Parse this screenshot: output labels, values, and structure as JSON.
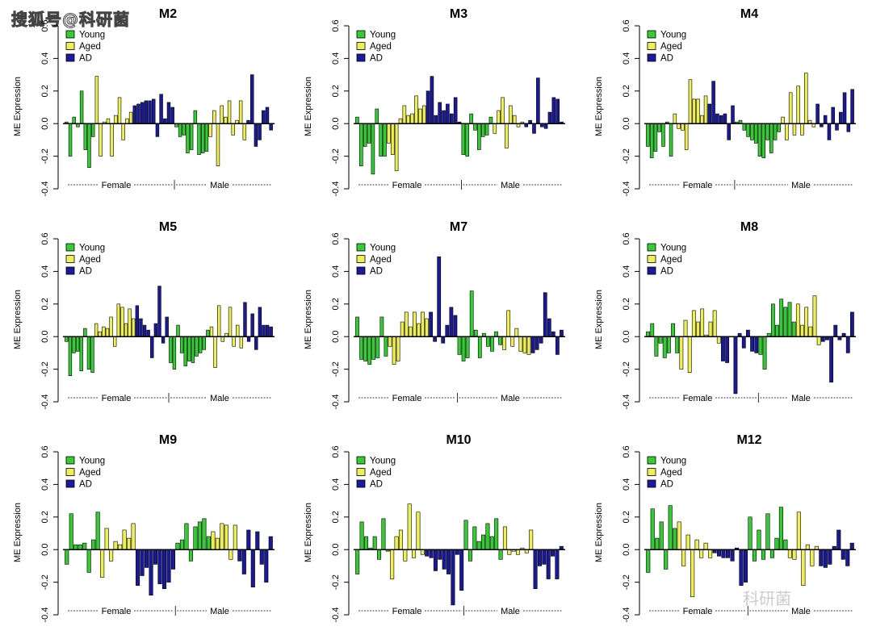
{
  "watermarks": {
    "top": "搜狐号@科研菌",
    "bottom": "科研菌"
  },
  "colors": {
    "Young": "#33cc33",
    "Aged": "#eeee55",
    "AD": "#1a1a99"
  },
  "chart_data": [
    {
      "type": "bar",
      "title": "M2",
      "ylabel": "ME Expression",
      "ylim": [
        -0.4,
        0.6
      ],
      "yticks": [
        "-0.4",
        "-0.2",
        "0.0",
        "0.2",
        "0.4",
        "0.6"
      ],
      "legend": [
        "Young",
        "Aged",
        "AD"
      ],
      "group_labels": [
        "Female",
        "Male"
      ],
      "female": {
        "Young": [
          0.01,
          -0.2,
          0.04,
          -0.02,
          0.2,
          -0.16,
          -0.27,
          -0.08
        ],
        "Aged": [
          0.29,
          -0.2,
          0.01,
          0.03,
          -0.2,
          0.05,
          0.16,
          -0.1,
          0.03,
          0.07
        ],
        "AD": [
          0.11,
          0.12,
          0.13,
          0.14,
          0.14,
          0.15,
          -0.08,
          0.18,
          0.03,
          0.13,
          0.1
        ]
      },
      "male": {
        "Young": [
          -0.02,
          -0.08,
          -0.07,
          -0.18,
          -0.16,
          0.08,
          -0.19,
          -0.18,
          -0.17
        ],
        "Aged": [
          -0.08,
          0.08,
          -0.26,
          0.11,
          0.04,
          0.14,
          -0.07,
          0.02,
          0.14,
          -0.1
        ],
        "AD": [
          0.02,
          0.3,
          -0.14,
          -0.1,
          0.08,
          0.1,
          -0.04
        ]
      }
    },
    {
      "type": "bar",
      "title": "M3",
      "ylabel": "ME Expression",
      "ylim": [
        -0.4,
        0.6
      ],
      "yticks": [
        "-0.4",
        "-0.2",
        "0.0",
        "0.2",
        "0.4",
        "0.6"
      ],
      "legend": [
        "Young",
        "Aged",
        "AD"
      ],
      "group_labels": [
        "Female",
        "Male"
      ],
      "female": {
        "Young": [
          0.04,
          -0.26,
          -0.14,
          -0.12,
          -0.31,
          0.09,
          -0.2,
          -0.2
        ],
        "Aged": [
          -0.12,
          -0.19,
          -0.29,
          0.03,
          0.11,
          0.05,
          0.06,
          0.17,
          0.09,
          0.11
        ],
        "AD": [
          0.2,
          0.29,
          0.05,
          0.13,
          0.08,
          0.12,
          0.06,
          0.16,
          0.01
        ]
      },
      "male": {
        "Young": [
          -0.19,
          -0.2,
          0.06,
          -0.04,
          -0.16,
          -0.08,
          -0.07,
          0.04
        ],
        "Aged": [
          -0.06,
          0.08,
          0.16,
          -0.15,
          0.11,
          0.05,
          -0.02,
          0.01
        ],
        "AD": [
          -0.02,
          0.02,
          -0.06,
          0.28,
          -0.02,
          -0.03,
          0.07,
          0.16,
          0.15,
          0.01
        ]
      }
    },
    {
      "type": "bar",
      "title": "M4",
      "ylabel": "ME Expression",
      "ylim": [
        -0.4,
        0.6
      ],
      "yticks": [
        "-0.4",
        "-0.2",
        "0.0",
        "0.2",
        "0.4",
        "0.6"
      ],
      "legend": [
        "Young",
        "Aged",
        "AD"
      ],
      "group_labels": [
        "Female",
        "Male"
      ],
      "female": {
        "Young": [
          -0.14,
          -0.21,
          -0.17,
          -0.05,
          -0.14,
          0.01,
          -0.2
        ],
        "Aged": [
          0.06,
          -0.03,
          -0.04,
          -0.16,
          0.27,
          0.15,
          0.15,
          0.05,
          0.17
        ],
        "AD": [
          0.12,
          0.26,
          0.06,
          0.05,
          0.06,
          -0.1,
          0.11
        ]
      },
      "male": {
        "Young": [
          0.01,
          0.02,
          -0.04,
          -0.08,
          -0.1,
          -0.12,
          -0.2,
          -0.21,
          -0.1,
          -0.18,
          -0.1,
          -0.05
        ],
        "Aged": [
          0.04,
          -0.1,
          0.19,
          -0.07,
          0.23,
          -0.07,
          0.31,
          0.02,
          -0.02
        ],
        "AD": [
          0.12,
          -0.02,
          0.05,
          -0.1,
          0.1,
          -0.04,
          0.07,
          0.19,
          -0.05,
          0.21
        ]
      }
    },
    {
      "type": "bar",
      "title": "M5",
      "ylabel": "ME Expression",
      "ylim": [
        -0.4,
        0.6
      ],
      "yticks": [
        "-0.4",
        "-0.2",
        "0.0",
        "0.2",
        "0.4",
        "0.6"
      ],
      "legend": [
        "Young",
        "Aged",
        "AD"
      ],
      "group_labels": [
        "Female",
        "Male"
      ],
      "female": {
        "Young": [
          -0.03,
          -0.24,
          -0.1,
          -0.09,
          -0.21,
          0.05,
          -0.2,
          -0.22
        ],
        "Aged": [
          0.08,
          0.03,
          0.06,
          0.05,
          0.12,
          -0.06,
          0.2,
          0.18,
          0.08,
          0.17,
          0.11
        ],
        "AD": [
          0.19,
          0.11,
          0.07,
          0.04,
          -0.13,
          0.08,
          0.31,
          -0.04,
          0.12
        ]
      },
      "male": {
        "Young": [
          -0.16,
          -0.2,
          0.07,
          -0.1,
          -0.18,
          -0.15,
          -0.16,
          -0.12,
          -0.1,
          -0.08,
          0.04
        ],
        "Aged": [
          0.06,
          -0.19,
          0.19,
          -0.03,
          0.02,
          0.18,
          -0.06,
          0.07,
          -0.07
        ],
        "AD": [
          0.21,
          -0.03,
          0.14,
          -0.08,
          0.18,
          0.07,
          0.07,
          0.06
        ]
      }
    },
    {
      "type": "bar",
      "title": "M7",
      "ylabel": "ME Expression",
      "ylim": [
        -0.4,
        0.6
      ],
      "yticks": [
        "-0.4",
        "-0.2",
        "0.0",
        "0.2",
        "0.4",
        "0.6"
      ],
      "legend": [
        "Young",
        "Aged",
        "AD"
      ],
      "group_labels": [
        "Female",
        "Male"
      ],
      "female": {
        "Young": [
          0.12,
          -0.14,
          -0.15,
          -0.17,
          -0.14,
          -0.13,
          0.12,
          -0.12
        ],
        "Aged": [
          -0.06,
          -0.17,
          -0.15,
          0.09,
          0.15,
          0.06,
          0.15,
          0.08,
          0.15,
          0.11
        ],
        "AD": [
          0.15,
          -0.03,
          0.49,
          -0.04,
          0.07,
          0.18,
          0.13
        ]
      },
      "male": {
        "Young": [
          -0.11,
          -0.15,
          -0.13,
          0.28,
          0.04,
          -0.13,
          0.02,
          -0.06,
          -0.09,
          0.03,
          -0.05
        ],
        "Aged": [
          -0.08,
          0.16,
          -0.06,
          0.05,
          -0.09,
          -0.1,
          -0.11
        ],
        "AD": [
          -0.1,
          -0.08,
          -0.04,
          0.27,
          0.11,
          0.03,
          -0.11,
          0.04
        ]
      }
    },
    {
      "type": "bar",
      "title": "M8",
      "ylabel": "ME Expression",
      "ylim": [
        -0.4,
        0.6
      ],
      "yticks": [
        "-0.4",
        "-0.2",
        "0.0",
        "0.2",
        "0.4",
        "0.6"
      ],
      "legend": [
        "Young",
        "Aged",
        "AD"
      ],
      "group_labels": [
        "Female",
        "Male"
      ],
      "female": {
        "Young": [
          0.03,
          0.08,
          -0.12,
          -0.04,
          -0.13,
          -0.1,
          0.08,
          -0.1
        ],
        "Aged": [
          -0.2,
          0.1,
          -0.22,
          0.16,
          0.09,
          0.17,
          0.01,
          0.09,
          0.16,
          -0.04
        ],
        "AD": [
          -0.15,
          -0.16,
          0.0,
          -0.35,
          0.02,
          -0.07,
          0.04,
          -0.09,
          -0.1
        ]
      },
      "male": {
        "Young": [
          -0.11,
          -0.2,
          0.02,
          0.2,
          0.07,
          0.23,
          0.18,
          0.21,
          0.09
        ],
        "Aged": [
          0.2,
          0.07,
          0.18,
          0.06,
          0.25,
          -0.05
        ],
        "AD": [
          -0.03,
          -0.02,
          -0.28,
          0.07,
          -0.02,
          0.02,
          -0.1,
          0.15
        ]
      }
    },
    {
      "type": "bar",
      "title": "M9",
      "ylabel": "ME Expression",
      "ylim": [
        -0.4,
        0.6
      ],
      "yticks": [
        "-0.4",
        "-0.2",
        "0.0",
        "0.2",
        "0.4",
        "0.6"
      ],
      "legend": [
        "Young",
        "Aged",
        "AD"
      ],
      "group_labels": [
        "Female",
        "Male"
      ],
      "female": {
        "Young": [
          -0.09,
          0.22,
          0.03,
          0.03,
          0.04,
          -0.14,
          0.06,
          0.23
        ],
        "Aged": [
          -0.17,
          0.13,
          -0.07,
          0.05,
          0.03,
          0.12,
          0.07,
          0.16
        ],
        "AD": [
          -0.22,
          -0.16,
          -0.11,
          -0.28,
          -0.09,
          -0.21,
          -0.24,
          -0.2,
          -0.12
        ]
      },
      "male": {
        "Young": [
          0.04,
          0.06,
          0.16,
          -0.07,
          0.14,
          0.17,
          0.19,
          0.08
        ],
        "Aged": [
          0.11,
          0.07,
          0.16,
          0.15,
          -0.06,
          0.15
        ],
        "AD": [
          -0.07,
          -0.15,
          0.12,
          -0.23,
          0.11,
          -0.09,
          -0.2,
          0.08
        ]
      }
    },
    {
      "type": "bar",
      "title": "M10",
      "ylabel": "ME Expression",
      "ylim": [
        -0.4,
        0.6
      ],
      "yticks": [
        "-0.4",
        "-0.2",
        "0.0",
        "0.2",
        "0.4",
        "0.6"
      ],
      "legend": [
        "Young",
        "Aged",
        "AD"
      ],
      "group_labels": [
        "Female",
        "Male"
      ],
      "female": {
        "Young": [
          -0.15,
          0.17,
          0.08,
          0.01,
          0.08,
          -0.06,
          0.19,
          -0.01
        ],
        "Aged": [
          -0.18,
          0.08,
          0.12,
          -0.07,
          0.28,
          -0.05,
          0.23,
          -0.03
        ],
        "AD": [
          -0.04,
          -0.05,
          -0.13,
          -0.06,
          -0.12,
          -0.15,
          -0.34,
          -0.03,
          -0.25
        ]
      },
      "male": {
        "Young": [
          0.18,
          -0.07,
          0.14,
          0.05,
          0.09,
          0.16,
          0.08,
          0.19,
          -0.06
        ],
        "Aged": [
          0.14,
          -0.03,
          -0.01,
          -0.03,
          0.01,
          -0.02,
          0.12
        ],
        "AD": [
          -0.24,
          -0.1,
          -0.09,
          -0.18,
          -0.04,
          -0.18,
          0.02
        ]
      }
    },
    {
      "type": "bar",
      "title": "M12",
      "ylabel": "ME Expression",
      "ylim": [
        -0.4,
        0.6
      ],
      "yticks": [
        "-0.4",
        "-0.2",
        "0.0",
        "0.2",
        "0.4",
        "0.6"
      ],
      "legend": [
        "Young",
        "Aged",
        "AD"
      ],
      "group_labels": [
        "Female",
        "Male"
      ],
      "female": {
        "Young": [
          -0.14,
          0.25,
          0.07,
          0.17,
          -0.12,
          0.27,
          0.13
        ],
        "Aged": [
          0.17,
          -0.1,
          0.09,
          -0.29,
          0.06,
          -0.05,
          0.04,
          -0.05
        ],
        "AD": [
          -0.02,
          -0.04,
          -0.05,
          -0.05,
          -0.07,
          0.01,
          -0.22,
          -0.2
        ]
      },
      "male": {
        "Young": [
          0.2,
          -0.07,
          0.12,
          -0.06,
          0.22,
          -0.05,
          0.07,
          0.26,
          0.06
        ],
        "Aged": [
          -0.05,
          -0.06,
          0.23,
          -0.22,
          0.03,
          -0.1,
          0.02
        ],
        "AD": [
          -0.1,
          -0.11,
          -0.09,
          0.02,
          0.12,
          -0.06,
          -0.1,
          0.04
        ]
      }
    }
  ]
}
